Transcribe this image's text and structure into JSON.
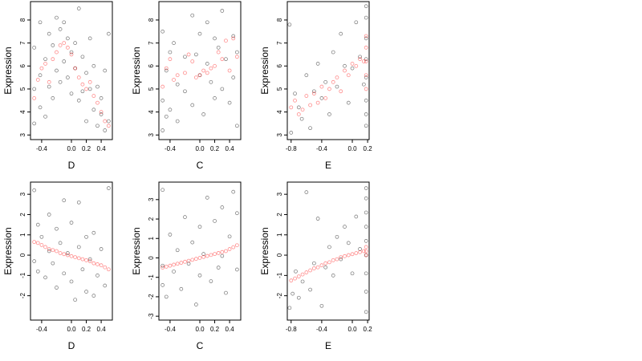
{
  "chart_data": [
    {
      "type": "scatter",
      "xlabel": "D",
      "ylabel": "Expression",
      "xlim": [
        -0.55,
        0.55
      ],
      "ylim": [
        2.8,
        8.8
      ],
      "xticks": [
        -0.4,
        0.0,
        0.2,
        0.4
      ],
      "yticks": [
        3,
        4,
        5,
        6,
        7,
        8
      ],
      "xtick_labels": [
        "-0.4",
        "0.0",
        "0.2",
        "0.4"
      ],
      "ytick_labels": [
        "3",
        "4",
        "5",
        "6",
        "7",
        "8"
      ],
      "series": [
        {
          "color": "#000000",
          "x": [
            -0.5,
            -0.5,
            -0.5,
            -0.42,
            -0.42,
            -0.42,
            -0.35,
            -0.35,
            -0.3,
            -0.3,
            -0.25,
            -0.25,
            -0.2,
            -0.2,
            -0.15,
            -0.15,
            -0.1,
            -0.1,
            -0.05,
            -0.05,
            0.0,
            0.0,
            0.05,
            0.05,
            0.1,
            0.1,
            0.15,
            0.15,
            0.2,
            0.2,
            0.25,
            0.25,
            0.3,
            0.3,
            0.35,
            0.35,
            0.4,
            0.4,
            0.45,
            0.45,
            0.5,
            0.5
          ],
          "y": [
            3.5,
            6.8,
            5.0,
            4.2,
            7.9,
            5.6,
            3.8,
            6.3,
            5.1,
            7.4,
            4.6,
            6.9,
            5.8,
            8.1,
            5.3,
            7.6,
            6.2,
            7.9,
            5.5,
            7.2,
            4.8,
            6.6,
            5.9,
            7.0,
            4.5,
            8.5,
            4.9,
            6.4,
            3.6,
            5.7,
            5.0,
            7.2,
            4.1,
            6.0,
            3.4,
            5.1,
            3.9,
            4.6,
            3.2,
            5.8,
            3.6,
            7.4
          ]
        },
        {
          "color": "#ff0000",
          "x": [
            -0.5,
            -0.45,
            -0.4,
            -0.35,
            -0.3,
            -0.25,
            -0.2,
            -0.15,
            -0.1,
            -0.05,
            0.0,
            0.05,
            0.1,
            0.15,
            0.2,
            0.25,
            0.3,
            0.35,
            0.4,
            0.45,
            0.5
          ],
          "y": [
            4.6,
            5.4,
            5.9,
            6.1,
            5.3,
            6.3,
            6.6,
            6.9,
            7.0,
            6.8,
            6.5,
            5.9,
            5.5,
            5.2,
            5.0,
            5.3,
            4.7,
            4.4,
            4.0,
            3.6,
            3.4
          ]
        }
      ]
    },
    {
      "type": "scatter",
      "xlabel": "C",
      "ylabel": "Expression",
      "xlim": [
        -0.55,
        0.55
      ],
      "ylim": [
        2.8,
        8.8
      ],
      "xticks": [
        -0.4,
        0.0,
        0.2,
        0.4
      ],
      "yticks": [
        3,
        4,
        5,
        6,
        7,
        8
      ],
      "xtick_labels": [
        "-0.4",
        "0.0",
        "0.2",
        "0.4"
      ],
      "ytick_labels": [
        "3",
        "4",
        "5",
        "6",
        "7",
        "8"
      ],
      "series": [
        {
          "color": "#000000",
          "x": [
            -0.5,
            -0.5,
            -0.5,
            -0.45,
            -0.45,
            -0.4,
            -0.4,
            -0.35,
            -0.3,
            -0.3,
            -0.2,
            -0.2,
            -0.1,
            -0.1,
            -0.05,
            0.0,
            0.0,
            0.05,
            0.1,
            0.1,
            0.15,
            0.2,
            0.2,
            0.25,
            0.3,
            0.3,
            0.35,
            0.4,
            0.45,
            0.45,
            0.5,
            0.5
          ],
          "y": [
            3.2,
            4.5,
            7.5,
            3.8,
            5.8,
            6.6,
            4.1,
            7.0,
            3.6,
            5.2,
            4.9,
            6.4,
            8.2,
            4.3,
            6.5,
            5.6,
            7.4,
            3.9,
            6.1,
            7.9,
            5.3,
            4.6,
            7.2,
            6.8,
            5.0,
            8.4,
            6.3,
            4.4,
            7.3,
            5.5,
            3.4,
            6.6
          ]
        },
        {
          "color": "#ff0000",
          "x": [
            -0.5,
            -0.45,
            -0.4,
            -0.35,
            -0.3,
            -0.2,
            -0.15,
            -0.1,
            -0.05,
            0.0,
            0.05,
            0.1,
            0.15,
            0.2,
            0.25,
            0.3,
            0.35,
            0.4,
            0.45,
            0.5
          ],
          "y": [
            5.1,
            5.9,
            6.3,
            5.4,
            5.6,
            5.7,
            6.5,
            6.2,
            5.5,
            5.6,
            5.8,
            5.7,
            5.9,
            6.0,
            6.6,
            6.3,
            7.1,
            5.8,
            7.2,
            6.4
          ]
        }
      ]
    },
    {
      "type": "scatter",
      "xlabel": "E",
      "ylabel": "Expression",
      "xlim": [
        -0.85,
        0.22
      ],
      "ylim": [
        2.8,
        8.8
      ],
      "xticks": [
        -0.8,
        -0.4,
        0.0,
        0.2
      ],
      "yticks": [
        3,
        4,
        5,
        6,
        7,
        8
      ],
      "xtick_labels": [
        "-0.8",
        "-0.4",
        "0.0",
        "0.2"
      ],
      "ytick_labels": [
        "3",
        "4",
        "5",
        "6",
        "7",
        "8"
      ],
      "series": [
        {
          "color": "#000000",
          "x": [
            -0.82,
            -0.8,
            -0.75,
            -0.7,
            -0.66,
            -0.6,
            -0.55,
            -0.5,
            -0.45,
            -0.4,
            -0.35,
            -0.3,
            -0.25,
            -0.2,
            -0.15,
            -0.1,
            -0.05,
            0.0,
            0.05,
            0.1,
            0.15,
            0.18,
            0.18,
            0.18,
            0.18,
            0.18,
            0.18,
            0.18,
            0.18
          ],
          "y": [
            7.8,
            3.1,
            4.8,
            4.2,
            3.7,
            5.6,
            3.3,
            4.9,
            6.1,
            4.6,
            5.3,
            3.9,
            6.6,
            5.1,
            7.4,
            6.0,
            4.4,
            5.9,
            7.9,
            6.4,
            5.2,
            3.4,
            4.5,
            5.5,
            6.3,
            7.2,
            8.1,
            8.6,
            3.9
          ]
        },
        {
          "color": "#ff0000",
          "x": [
            -0.8,
            -0.75,
            -0.7,
            -0.65,
            -0.6,
            -0.55,
            -0.5,
            -0.45,
            -0.4,
            -0.35,
            -0.3,
            -0.25,
            -0.2,
            -0.15,
            -0.1,
            -0.05,
            0.0,
            0.05,
            0.1,
            0.15,
            0.18,
            0.18,
            0.18,
            0.18,
            0.18
          ],
          "y": [
            4.2,
            4.5,
            3.9,
            4.1,
            4.7,
            4.3,
            4.8,
            4.4,
            5.1,
            4.6,
            5.0,
            5.3,
            5.5,
            4.9,
            5.8,
            5.6,
            6.1,
            6.0,
            6.3,
            6.2,
            5.0,
            5.6,
            6.2,
            6.8,
            7.3
          ]
        }
      ]
    },
    {
      "type": "scatter",
      "xlabel": "D",
      "ylabel": "Expression",
      "xlim": [
        -0.55,
        0.55
      ],
      "ylim": [
        -3.2,
        3.6
      ],
      "xticks": [
        -0.4,
        0.0,
        0.2,
        0.4
      ],
      "yticks": [
        -2,
        -1,
        0,
        1,
        2,
        3
      ],
      "xtick_labels": [
        "-0.4",
        "0.0",
        "0.2",
        "0.4"
      ],
      "ytick_labels": [
        "-2",
        "-1",
        "0",
        "1",
        "2",
        "3"
      ],
      "series": [
        {
          "color": "#000000",
          "x": [
            -0.5,
            -0.5,
            -0.45,
            -0.45,
            -0.4,
            -0.35,
            -0.3,
            -0.3,
            -0.25,
            -0.2,
            -0.2,
            -0.15,
            -0.1,
            -0.1,
            -0.05,
            0.0,
            0.0,
            0.05,
            0.1,
            0.1,
            0.15,
            0.2,
            0.2,
            0.25,
            0.3,
            0.3,
            0.35,
            0.4,
            0.45,
            0.5
          ],
          "y": [
            3.2,
            -0.3,
            1.5,
            -0.8,
            0.9,
            -1.1,
            2.0,
            0.2,
            -0.4,
            1.3,
            -1.6,
            0.6,
            -0.9,
            2.7,
            0.1,
            -1.3,
            1.6,
            -2.2,
            0.4,
            2.6,
            -0.7,
            -1.8,
            0.9,
            -0.2,
            -2.0,
            1.1,
            -1.0,
            0.3,
            -1.5,
            3.3
          ]
        },
        {
          "color": "#ff0000",
          "x": [
            -0.5,
            -0.45,
            -0.4,
            -0.35,
            -0.3,
            -0.25,
            -0.2,
            -0.15,
            -0.1,
            -0.05,
            0.0,
            0.05,
            0.1,
            0.15,
            0.2,
            0.25,
            0.3,
            0.35,
            0.4,
            0.45,
            0.5
          ],
          "y": [
            0.65,
            0.6,
            0.5,
            0.4,
            0.3,
            0.25,
            0.2,
            0.1,
            0.05,
            0.0,
            -0.05,
            -0.1,
            -0.15,
            -0.2,
            -0.25,
            -0.3,
            -0.4,
            -0.45,
            -0.5,
            -0.6,
            -0.7
          ]
        }
      ]
    },
    {
      "type": "scatter",
      "xlabel": "C",
      "ylabel": "Expression",
      "xlim": [
        -0.55,
        0.55
      ],
      "ylim": [
        -3.2,
        3.9
      ],
      "xticks": [
        -0.4,
        0.0,
        0.2,
        0.4
      ],
      "yticks": [
        -3,
        -2,
        -1,
        0,
        1,
        2,
        3
      ],
      "xtick_labels": [
        "-0.4",
        "0.0",
        "0.2",
        "0.4"
      ],
      "ytick_labels": [
        "-3",
        "-2",
        "-1",
        "0",
        "1",
        "2",
        "3"
      ],
      "series": [
        {
          "color": "#000000",
          "x": [
            -0.5,
            -0.5,
            -0.5,
            -0.45,
            -0.4,
            -0.35,
            -0.3,
            -0.25,
            -0.2,
            -0.15,
            -0.1,
            -0.05,
            0.0,
            0.0,
            0.05,
            0.1,
            0.15,
            0.2,
            0.25,
            0.3,
            0.3,
            0.35,
            0.4,
            0.45,
            0.5,
            0.5
          ],
          "y": [
            3.5,
            -1.4,
            -0.4,
            -2.0,
            1.2,
            -0.7,
            0.4,
            -1.6,
            2.1,
            -0.3,
            0.8,
            -2.4,
            1.6,
            -0.9,
            0.2,
            3.1,
            -1.2,
            1.9,
            -0.5,
            2.6,
            0.1,
            -1.8,
            1.1,
            3.4,
            -0.6,
            2.3
          ]
        },
        {
          "color": "#ff0000",
          "x": [
            -0.5,
            -0.45,
            -0.4,
            -0.35,
            -0.3,
            -0.25,
            -0.2,
            -0.15,
            -0.1,
            -0.05,
            0.0,
            0.05,
            0.1,
            0.15,
            0.2,
            0.25,
            0.3,
            0.35,
            0.4,
            0.45,
            0.5
          ],
          "y": [
            -0.5,
            -0.45,
            -0.4,
            -0.35,
            -0.3,
            -0.25,
            -0.2,
            -0.15,
            -0.1,
            -0.05,
            0.0,
            0.05,
            0.1,
            0.15,
            0.2,
            0.25,
            0.3,
            0.35,
            0.45,
            0.55,
            0.65
          ]
        }
      ]
    },
    {
      "type": "scatter",
      "xlabel": "E",
      "ylabel": "Expression",
      "xlim": [
        -0.85,
        0.22
      ],
      "ylim": [
        -3.2,
        3.6
      ],
      "xticks": [
        -0.8,
        -0.4,
        0.0,
        0.2
      ],
      "yticks": [
        -2,
        -1,
        0,
        1,
        2,
        3
      ],
      "xtick_labels": [
        "-0.8",
        "-0.4",
        "0.0",
        "0.2"
      ],
      "ytick_labels": [
        "-2",
        "-1",
        "0",
        "1",
        "2",
        "3"
      ],
      "series": [
        {
          "color": "#000000",
          "x": [
            -0.82,
            -0.78,
            -0.74,
            -0.7,
            -0.65,
            -0.6,
            -0.55,
            -0.5,
            -0.45,
            -0.4,
            -0.35,
            -0.3,
            -0.25,
            -0.2,
            -0.15,
            -0.1,
            -0.05,
            0.0,
            0.05,
            0.1,
            0.18,
            0.18,
            0.18,
            0.18,
            0.18,
            0.18,
            0.18,
            0.18,
            0.18
          ],
          "y": [
            -2.6,
            -1.9,
            -0.8,
            -2.1,
            -1.3,
            3.1,
            -1.7,
            -0.4,
            1.8,
            -2.5,
            -0.6,
            0.4,
            -1.0,
            0.9,
            -0.2,
            1.4,
            0.6,
            -0.9,
            1.9,
            0.3,
            -2.8,
            -1.8,
            -0.9,
            0.0,
            0.7,
            1.4,
            2.1,
            2.8,
            3.3
          ]
        },
        {
          "color": "#ff0000",
          "x": [
            -0.8,
            -0.75,
            -0.7,
            -0.65,
            -0.6,
            -0.55,
            -0.5,
            -0.45,
            -0.4,
            -0.35,
            -0.3,
            -0.25,
            -0.2,
            -0.15,
            -0.1,
            -0.05,
            0.0,
            0.05,
            0.1,
            0.15,
            0.18,
            0.18,
            0.18
          ],
          "y": [
            -1.25,
            -1.15,
            -1.05,
            -0.95,
            -0.85,
            -0.75,
            -0.65,
            -0.6,
            -0.5,
            -0.4,
            -0.35,
            -0.25,
            -0.2,
            -0.1,
            -0.05,
            0.0,
            0.05,
            0.1,
            0.15,
            0.2,
            0.0,
            0.2,
            0.4
          ]
        }
      ]
    }
  ]
}
